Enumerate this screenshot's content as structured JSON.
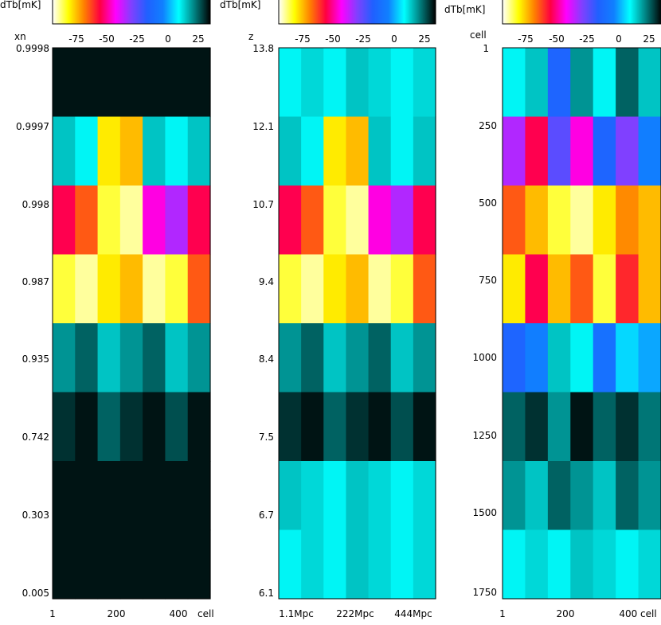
{
  "colors": {
    "colormap_stops": [
      "#ffffff",
      "#ffff00",
      "#ff8000",
      "#ff0040",
      "#ff00ff",
      "#8040ff",
      "#2060ff",
      "#1080ff",
      "#00ffff",
      "#008080",
      "#000000"
    ],
    "frame": "#000000"
  },
  "chart_data": [
    {
      "type": "heatmap",
      "colorbar": {
        "label": "dTb[mK]",
        "ticks": [
          "-75",
          "-50",
          "-25",
          "0",
          "25"
        ]
      },
      "ylabel": "xn",
      "yticks": [
        "0.9998",
        "0.9997",
        "0.998",
        "0.987",
        "0.935",
        "0.742",
        "0.303",
        "0.005"
      ],
      "xticks": [
        "1",
        "200",
        "400"
      ],
      "xlabel": "cell",
      "rows": [
        {
          "yval": "0.9998",
          "dTb": [
            28,
            28,
            28,
            28,
            28,
            28,
            28
          ]
        },
        {
          "yval": "0.9997",
          "dTb": [
            10,
            5,
            -85,
            -80,
            10,
            5,
            10
          ]
        },
        {
          "yval": "0.998",
          "dTb": [
            -60,
            -70,
            -90,
            -95,
            -50,
            -40,
            -60
          ]
        },
        {
          "yval": "0.987",
          "dTb": [
            -90,
            -95,
            -85,
            -80,
            -95,
            -90,
            -70
          ]
        },
        {
          "yval": "0.935",
          "dTb": [
            15,
            20,
            10,
            15,
            20,
            10,
            15
          ]
        },
        {
          "yval": "0.742",
          "dTb": [
            25,
            28,
            20,
            25,
            28,
            22,
            28
          ]
        },
        {
          "yval": "0.303",
          "dTb": [
            28,
            28,
            28,
            28,
            28,
            28,
            28
          ]
        },
        {
          "yval": "0.005",
          "dTb": [
            28,
            28,
            28,
            28,
            28,
            28,
            28
          ]
        }
      ]
    },
    {
      "type": "heatmap",
      "colorbar": {
        "label": "dTb[mK]",
        "ticks": [
          "-75",
          "-50",
          "-25",
          "0",
          "25"
        ]
      },
      "ylabel": "z",
      "yticks": [
        "13.8",
        "12.1",
        "10.7",
        "9.4",
        "8.4",
        "7.5",
        "6.7",
        "6.1"
      ],
      "xticks": [
        "1.1Mpc",
        "222Mpc",
        "444Mpc"
      ],
      "xlabel": "",
      "rows": [
        {
          "yval": "13.8",
          "dTb": [
            5,
            8,
            5,
            10,
            8,
            5,
            8
          ]
        },
        {
          "yval": "12.1",
          "dTb": [
            10,
            5,
            -85,
            -80,
            10,
            5,
            10
          ]
        },
        {
          "yval": "10.7",
          "dTb": [
            -60,
            -70,
            -90,
            -95,
            -50,
            -40,
            -60
          ]
        },
        {
          "yval": "9.4",
          "dTb": [
            -90,
            -95,
            -85,
            -80,
            -95,
            -90,
            -70
          ]
        },
        {
          "yval": "8.4",
          "dTb": [
            15,
            20,
            10,
            15,
            20,
            10,
            15
          ]
        },
        {
          "yval": "7.5",
          "dTb": [
            25,
            28,
            20,
            25,
            28,
            22,
            28
          ]
        },
        {
          "yval": "6.7",
          "dTb": [
            10,
            8,
            5,
            10,
            8,
            5,
            8
          ]
        },
        {
          "yval": "6.1",
          "dTb": [
            5,
            8,
            5,
            10,
            8,
            5,
            8
          ]
        }
      ]
    },
    {
      "type": "heatmap",
      "colorbar": {
        "label": "dTb[mK]",
        "ticks": [
          "-75",
          "-50",
          "-25",
          "0",
          "25"
        ]
      },
      "ylabel": "cell",
      "yticks": [
        "1",
        "250",
        "500",
        "750",
        "1000",
        "1250",
        "1500",
        "1750"
      ],
      "xticks": [
        "1",
        "200",
        "400 cell"
      ],
      "xlabel": "",
      "rows": [
        {
          "yval": "1",
          "dTb": [
            5,
            10,
            -20,
            15,
            5,
            20,
            10
          ]
        },
        {
          "yval": "250",
          "dTb": [
            -40,
            -60,
            -30,
            -50,
            -20,
            -35,
            -10
          ]
        },
        {
          "yval": "500",
          "dTb": [
            -70,
            -80,
            -90,
            -95,
            -85,
            -75,
            -80
          ]
        },
        {
          "yval": "750",
          "dTb": [
            -85,
            -60,
            -80,
            -70,
            -90,
            -65,
            -80
          ]
        },
        {
          "yval": "1000",
          "dTb": [
            -20,
            -10,
            10,
            5,
            -15,
            0,
            -5
          ]
        },
        {
          "yval": "1250",
          "dTb": [
            20,
            25,
            15,
            28,
            20,
            25,
            18
          ]
        },
        {
          "yval": "1500",
          "dTb": [
            15,
            10,
            20,
            15,
            10,
            20,
            15
          ]
        },
        {
          "yval": "1750",
          "dTb": [
            5,
            8,
            5,
            10,
            8,
            5,
            8
          ]
        }
      ]
    }
  ]
}
